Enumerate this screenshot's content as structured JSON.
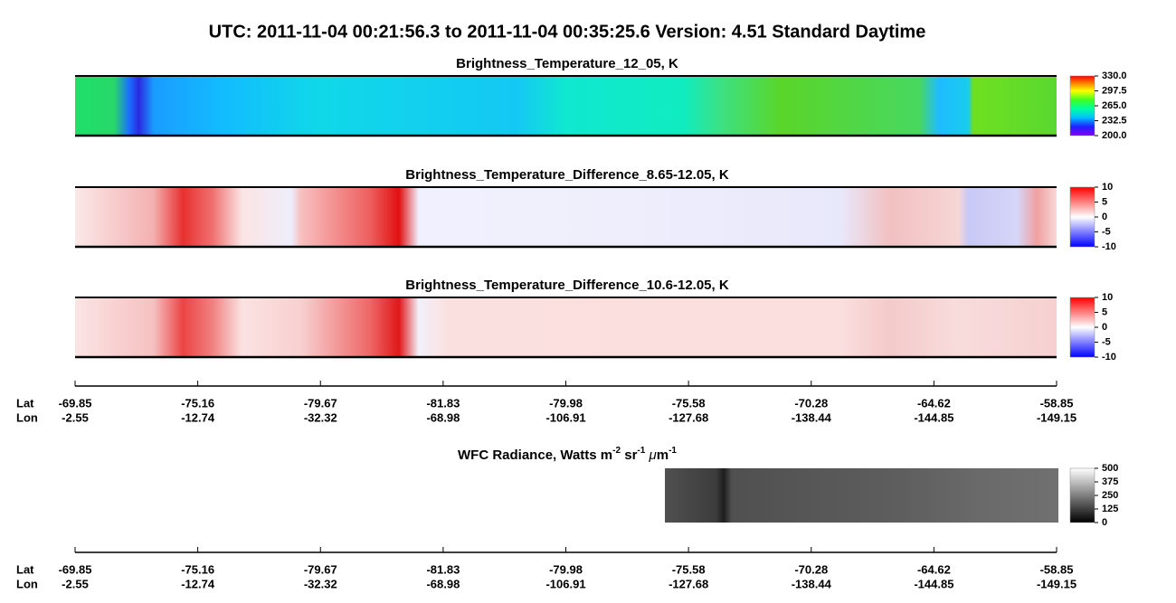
{
  "title": "UTC:  2011-11-04   00:21:56.3  to  2011-11-04   00:35:25.6    Version: 4.51  Standard Daytime",
  "panels": [
    {
      "title": "Brightness_Temperature_12_05, K",
      "colorbar_ticks": [
        "330.0",
        "297.5",
        "265.0",
        "232.5",
        "200.0"
      ]
    },
    {
      "title": "Brightness_Temperature_Difference_8.65-12.05, K",
      "colorbar_ticks": [
        "10",
        "5",
        "0",
        "-5",
        "-10"
      ]
    },
    {
      "title": "Brightness_Temperature_Difference_10.6-12.05, K",
      "colorbar_ticks": [
        "10",
        "5",
        "0",
        "-5",
        "-10"
      ]
    }
  ],
  "axes": [
    {
      "lat_label": "Lat",
      "lon_label": "Lon",
      "lat": [
        "-69.85",
        "-75.16",
        "-79.67",
        "-81.83",
        "-79.98",
        "-75.58",
        "-70.28",
        "-64.62",
        "-58.85"
      ],
      "lon": [
        "-2.55",
        "-12.74",
        "-32.32",
        "-68.98",
        "-106.91",
        "-127.68",
        "-138.44",
        "-144.85",
        "-149.15"
      ]
    },
    {
      "lat_label": "Lat",
      "lon_label": "Lon",
      "lat": [
        "-69.85",
        "-75.16",
        "-79.67",
        "-81.83",
        "-79.98",
        "-75.58",
        "-70.28",
        "-64.62",
        "-58.85"
      ],
      "lon": [
        "-2.55",
        "-12.74",
        "-32.32",
        "-68.98",
        "-106.91",
        "-127.68",
        "-138.44",
        "-144.85",
        "-149.15"
      ]
    }
  ],
  "wfc": {
    "title": [
      {
        "text": "WFC Radiance, Watts m"
      },
      {
        "text": "-2",
        "sup": true
      },
      {
        "text": " sr"
      },
      {
        "text": "-1",
        "sup": true
      },
      {
        "text": " "
      },
      {
        "text": "μ",
        "italic": true
      },
      {
        "text": "m"
      },
      {
        "text": "-1",
        "sup": true
      }
    ],
    "colorbar_ticks": [
      "500",
      "375",
      "250",
      "125",
      "0"
    ]
  }
}
